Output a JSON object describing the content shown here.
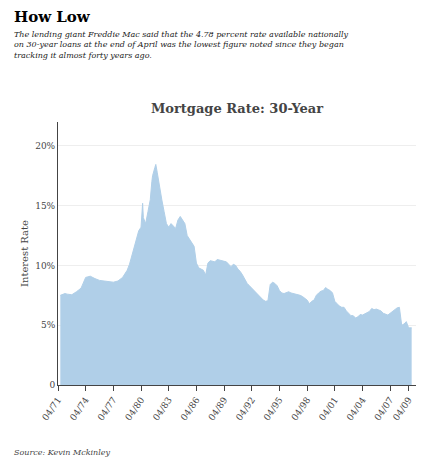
{
  "chart_data": {
    "type": "area",
    "title": "Mortgage Rate: 30-Year",
    "headline": "How Low",
    "subtitle": "The lending giant Freddie Mac said that the 4.78 percent rate available nationally\non 30-year loans at the end of April was the lowest figure noted since they began\ntracking it almost forty years ago.",
    "source": "Source: Kevin Mckinley",
    "ylabel": "Interest Rate",
    "color": "#b0cfe8",
    "grid": true,
    "x": [
      1971.25,
      1971.5,
      1971.75,
      1972.0,
      1972.5,
      1973.0,
      1973.5,
      1974.0,
      1974.5,
      1975.0,
      1975.5,
      1976.0,
      1976.5,
      1977.0,
      1977.5,
      1978.0,
      1978.25,
      1978.5,
      1978.75,
      1979.0,
      1979.25,
      1979.5,
      1979.75,
      1980.0,
      1980.17,
      1980.25,
      1980.5,
      1980.75,
      1981.0,
      1981.17,
      1981.25,
      1981.5,
      1981.6,
      1981.75,
      1982.0,
      1982.25,
      1982.5,
      1982.75,
      1983.0,
      1983.25,
      1983.5,
      1983.75,
      1984.0,
      1984.25,
      1984.5,
      1984.75,
      1985.0,
      1985.25,
      1985.5,
      1985.75,
      1986.0,
      1986.25,
      1986.5,
      1986.75,
      1987.0,
      1987.25,
      1987.5,
      1987.75,
      1988.0,
      1988.25,
      1988.5,
      1988.75,
      1989.0,
      1989.25,
      1989.5,
      1989.75,
      1990.0,
      1990.25,
      1990.5,
      1990.75,
      1991.0,
      1991.25,
      1991.5,
      1991.75,
      1992.0,
      1992.25,
      1992.5,
      1992.75,
      1993.0,
      1993.25,
      1993.5,
      1993.75,
      1994.0,
      1994.25,
      1994.5,
      1994.75,
      1995.0,
      1995.25,
      1995.5,
      1995.75,
      1996.0,
      1996.25,
      1996.5,
      1996.75,
      1997.0,
      1997.25,
      1997.5,
      1997.75,
      1998.0,
      1998.25,
      1998.5,
      1998.75,
      1999.0,
      1999.25,
      1999.5,
      1999.75,
      2000.0,
      2000.25,
      2000.5,
      2000.75,
      2001.0,
      2001.25,
      2001.5,
      2001.75,
      2002.0,
      2002.25,
      2002.5,
      2002.75,
      2003.0,
      2003.25,
      2003.5,
      2003.75,
      2004.0,
      2004.25,
      2004.5,
      2004.75,
      2005.0,
      2005.25,
      2005.5,
      2005.75,
      2006.0,
      2006.25,
      2006.5,
      2006.75,
      2007.0,
      2007.25,
      2007.5,
      2007.75,
      2008.0,
      2008.25,
      2008.5,
      2008.75,
      2009.0,
      2009.33
    ],
    "values": [
      7.5,
      7.6,
      7.65,
      7.6,
      7.55,
      7.8,
      8.1,
      9.0,
      9.1,
      8.9,
      8.75,
      8.7,
      8.65,
      8.6,
      8.7,
      9.0,
      9.3,
      9.6,
      10.1,
      10.8,
      11.5,
      12.3,
      12.9,
      13.2,
      15.2,
      14.0,
      13.5,
      14.5,
      15.5,
      17.0,
      17.5,
      18.2,
      18.45,
      17.8,
      16.5,
      15.5,
      14.5,
      13.5,
      13.2,
      13.5,
      13.3,
      13.1,
      13.8,
      14.1,
      13.8,
      13.5,
      12.5,
      12.2,
      12.0,
      11.6,
      10.2,
      9.8,
      9.7,
      9.6,
      9.2,
      10.2,
      10.4,
      10.35,
      10.3,
      10.5,
      10.45,
      10.4,
      10.4,
      10.3,
      10.1,
      9.9,
      10.1,
      10.0,
      9.7,
      9.5,
      9.2,
      8.8,
      8.5,
      8.3,
      8.1,
      7.9,
      7.7,
      7.5,
      7.25,
      7.1,
      7.0,
      7.05,
      8.4,
      8.6,
      8.5,
      8.3,
      7.9,
      7.7,
      7.65,
      7.7,
      7.8,
      7.7,
      7.65,
      7.6,
      7.6,
      7.5,
      7.4,
      7.25,
      7.1,
      6.8,
      7.0,
      7.1,
      7.5,
      7.7,
      7.85,
      7.9,
      8.15,
      8.0,
      7.9,
      7.7,
      7.0,
      6.8,
      6.6,
      6.5,
      6.5,
      6.2,
      6.0,
      5.8,
      5.8,
      5.6,
      5.7,
      5.9,
      5.85,
      5.95,
      6.05,
      6.15,
      6.4,
      6.3,
      6.35,
      6.3,
      6.2,
      6.0,
      5.9,
      5.85,
      6.0,
      6.15,
      6.3,
      6.45,
      6.5,
      5.0,
      5.1,
      5.3,
      4.78,
      4.78
    ],
    "xlim": [
      1971.0,
      2009.8
    ],
    "xticks": [
      {
        "value": 1971,
        "label": "04/71"
      },
      {
        "value": 1974,
        "label": "04/74"
      },
      {
        "value": 1977,
        "label": "04/77"
      },
      {
        "value": 1980,
        "label": "04/80"
      },
      {
        "value": 1983,
        "label": "04/83"
      },
      {
        "value": 1986,
        "label": "04/86"
      },
      {
        "value": 1989,
        "label": "04/89"
      },
      {
        "value": 1992,
        "label": "04/92"
      },
      {
        "value": 1995,
        "label": "04/95"
      },
      {
        "value": 1998,
        "label": "04/98"
      },
      {
        "value": 2001,
        "label": "04/01"
      },
      {
        "value": 2004,
        "label": "04/04"
      },
      {
        "value": 2007,
        "label": "04/07"
      },
      {
        "value": 2009,
        "label": "04/09"
      }
    ],
    "ylim": [
      0,
      22
    ],
    "yticks": [
      0,
      {
        "value": 5,
        "label": "5%"
      },
      {
        "value": 10,
        "label": "10%"
      },
      {
        "value": 15,
        "label": "15%"
      },
      {
        "value": 20,
        "label": "20%"
      }
    ]
  }
}
